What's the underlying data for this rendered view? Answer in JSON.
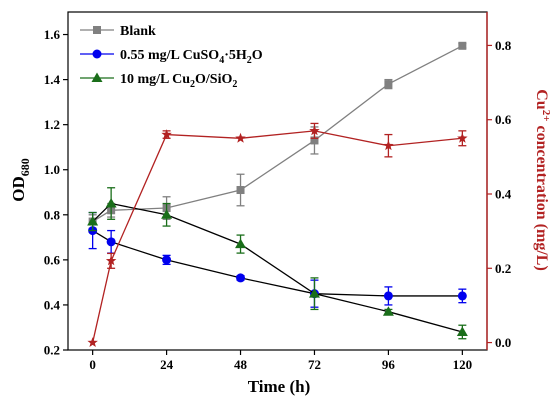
{
  "chart_data": {
    "type": "line",
    "x": [
      0,
      6,
      24,
      48,
      72,
      96,
      120
    ],
    "xlabel": "Time (h)",
    "ylabel_main": "OD",
    "ylabel_sub": "680",
    "ylim": [
      0.2,
      1.7
    ],
    "y2label_prefix": "Cu",
    "y2label_sup": "2+",
    "y2label_suffix": " concentration (mg/L)",
    "y2lim": [
      -0.02,
      0.89
    ],
    "xticks": [
      0,
      24,
      48,
      72,
      96,
      120
    ],
    "yticks": [
      0.2,
      0.4,
      0.6,
      0.8,
      1.0,
      1.2,
      1.4,
      1.6
    ],
    "y2ticks": [
      0.0,
      0.2,
      0.4,
      0.6,
      0.8
    ],
    "grid": false,
    "legend_position": "top-left",
    "series": [
      {
        "name": "Blank",
        "axis": "left",
        "color": "#808080",
        "marker": "square",
        "values": [
          0.77,
          0.82,
          0.83,
          0.91,
          1.13,
          1.38,
          1.55
        ],
        "errors": [
          0.03,
          0.03,
          0.05,
          0.07,
          0.06,
          0.02,
          0.01
        ]
      },
      {
        "name_parts": [
          "0.55 mg/L CuSO",
          "4",
          "·5H",
          "2",
          "O"
        ],
        "axis": "left",
        "color": "#0000ee",
        "marker": "circle",
        "values": [
          0.73,
          0.68,
          0.6,
          0.52,
          0.45,
          0.44,
          0.44
        ],
        "errors": [
          0.08,
          0.05,
          0.02,
          0.01,
          0.06,
          0.04,
          0.03
        ]
      },
      {
        "name_parts": [
          "10 mg/L Cu",
          "2",
          "O/SiO",
          "2",
          ""
        ],
        "axis": "left",
        "color": "#1a6e1a",
        "marker": "triangle",
        "values": [
          0.77,
          0.85,
          0.8,
          0.67,
          0.45,
          0.37,
          0.28
        ],
        "errors": [
          0.04,
          0.07,
          0.05,
          0.04,
          0.07,
          0.01,
          0.03
        ]
      },
      {
        "name": "",
        "axis": "right",
        "color": "#b22222",
        "marker": "star",
        "values": [
          0.0,
          0.22,
          0.56,
          0.55,
          0.57,
          0.53,
          0.55
        ],
        "errors": [
          0.0,
          0.02,
          0.01,
          0.0,
          0.02,
          0.03,
          0.02
        ]
      }
    ]
  }
}
